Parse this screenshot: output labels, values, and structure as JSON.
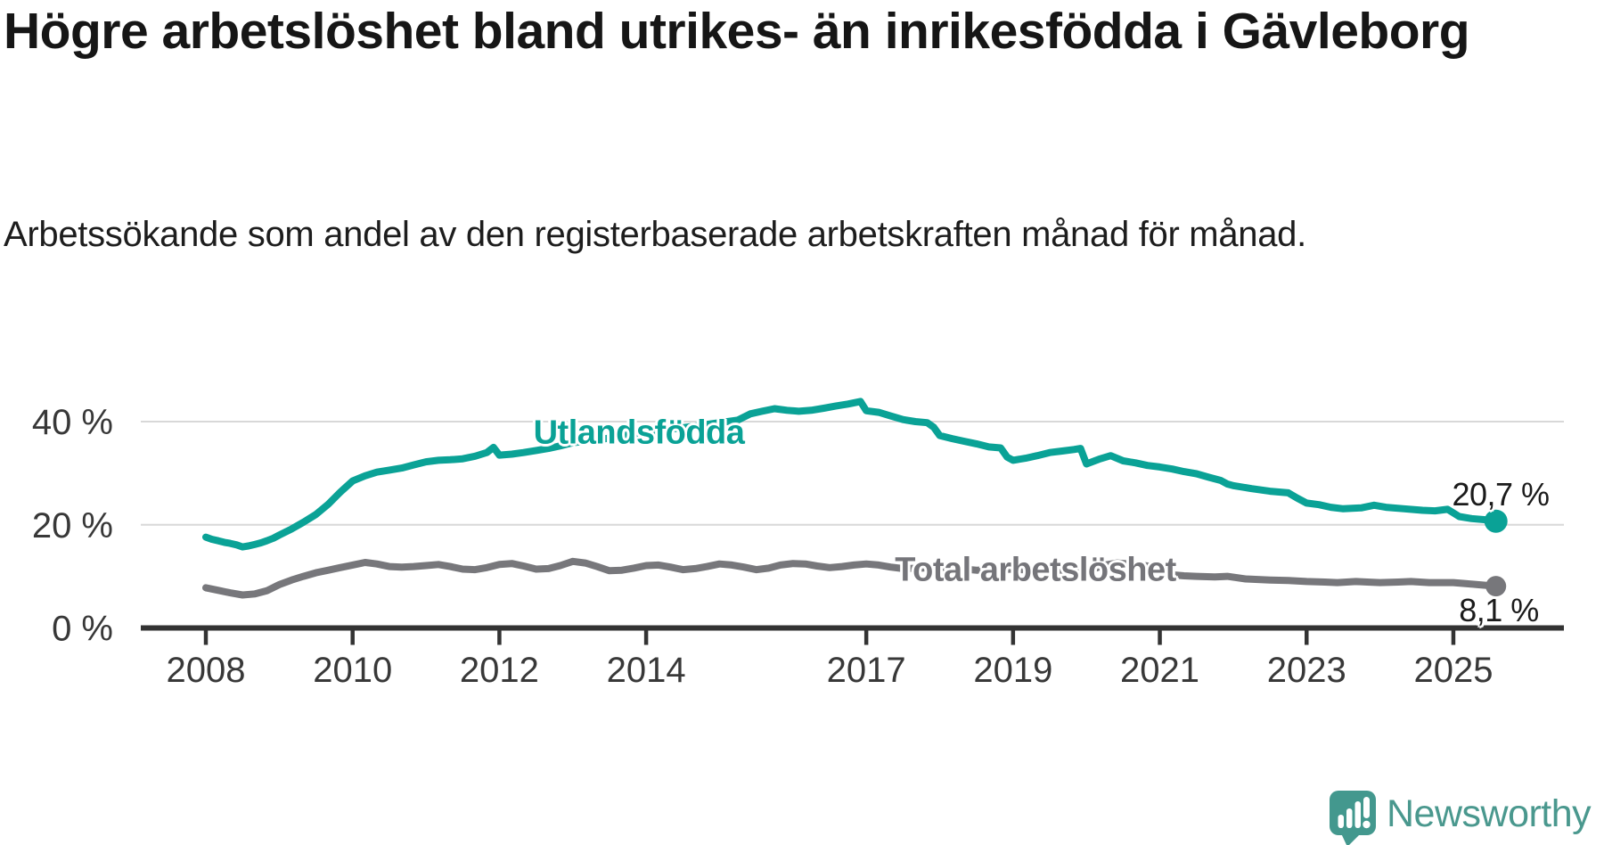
{
  "header": {
    "title": "Högre arbetslöshet bland utrikes- än inrikesfödda i Gävleborg",
    "subtitle": "Arbetssökande som andel av den registerbaserade arbetskraften månad för månad."
  },
  "footer": {
    "brand": "Newsworthy"
  },
  "colors": {
    "accent_teal": "#0aa296",
    "line_gray": "#77777b",
    "grid": "#d8d8d8",
    "axis": "#333333",
    "tick_text": "#383838",
    "logo_teal": "#43988e"
  },
  "chart_data": {
    "type": "line",
    "title": "Högre arbetslöshet bland utrikes- än inrikesfödda i Gävleborg",
    "subtitle": "Arbetssökande som andel av den registerbaserade arbetskraften månad för månad.",
    "x_axis": {
      "unit": "year",
      "tick_values": [
        2008,
        2010,
        2012,
        2014,
        2017,
        2019,
        2021,
        2023,
        2025
      ],
      "tick_labels": [
        "2008",
        "2010",
        "2012",
        "2014",
        "2017",
        "2019",
        "2021",
        "2023",
        "2025"
      ],
      "range": [
        2008.0,
        2025.58
      ]
    },
    "y_axis": {
      "unit": "percent",
      "tick_values": [
        0,
        20,
        40
      ],
      "tick_labels": [
        "0 %",
        "20 %",
        "40 %"
      ],
      "ylim": [
        0,
        46
      ],
      "grid": true
    },
    "legend_position": "inline-on-line",
    "series": [
      {
        "name": "Utlandsfödda",
        "color": "#0aa296",
        "end_label": "20,7 %",
        "end_value": 20.7,
        "points": [
          [
            2008.0,
            17.6
          ],
          [
            2008.08,
            17.2
          ],
          [
            2008.17,
            16.9
          ],
          [
            2008.25,
            16.6
          ],
          [
            2008.33,
            16.4
          ],
          [
            2008.42,
            16.1
          ],
          [
            2008.5,
            15.7
          ],
          [
            2008.58,
            15.9
          ],
          [
            2008.67,
            16.2
          ],
          [
            2008.75,
            16.5
          ],
          [
            2008.83,
            16.9
          ],
          [
            2008.92,
            17.4
          ],
          [
            2009.0,
            18.0
          ],
          [
            2009.17,
            19.2
          ],
          [
            2009.33,
            20.5
          ],
          [
            2009.5,
            22.0
          ],
          [
            2009.67,
            24.0
          ],
          [
            2009.83,
            26.3
          ],
          [
            2010.0,
            28.5
          ],
          [
            2010.17,
            29.5
          ],
          [
            2010.33,
            30.2
          ],
          [
            2010.5,
            30.6
          ],
          [
            2010.67,
            31.0
          ],
          [
            2010.83,
            31.6
          ],
          [
            2011.0,
            32.2
          ],
          [
            2011.17,
            32.5
          ],
          [
            2011.33,
            32.6
          ],
          [
            2011.5,
            32.8
          ],
          [
            2011.67,
            33.3
          ],
          [
            2011.83,
            34.0
          ],
          [
            2011.92,
            35.0
          ],
          [
            2012.0,
            33.5
          ],
          [
            2012.17,
            33.7
          ],
          [
            2012.33,
            34.0
          ],
          [
            2012.5,
            34.4
          ],
          [
            2012.67,
            34.8
          ],
          [
            2012.83,
            35.3
          ],
          [
            2013.0,
            35.9
          ],
          [
            2013.25,
            36.3
          ],
          [
            2013.5,
            36.8
          ],
          [
            2013.75,
            37.4
          ],
          [
            2014.0,
            38.0
          ],
          [
            2014.25,
            38.4
          ],
          [
            2014.5,
            38.8
          ],
          [
            2014.75,
            39.3
          ],
          [
            2015.0,
            39.8
          ],
          [
            2015.25,
            40.3
          ],
          [
            2015.42,
            41.5
          ],
          [
            2015.58,
            42.0
          ],
          [
            2015.75,
            42.5
          ],
          [
            2015.92,
            42.2
          ],
          [
            2016.08,
            42.0
          ],
          [
            2016.25,
            42.2
          ],
          [
            2016.42,
            42.6
          ],
          [
            2016.58,
            43.0
          ],
          [
            2016.75,
            43.4
          ],
          [
            2016.92,
            43.9
          ],
          [
            2017.0,
            42.1
          ],
          [
            2017.17,
            41.8
          ],
          [
            2017.33,
            41.1
          ],
          [
            2017.5,
            40.4
          ],
          [
            2017.67,
            40.0
          ],
          [
            2017.83,
            39.8
          ],
          [
            2017.92,
            38.9
          ],
          [
            2018.0,
            37.3
          ],
          [
            2018.17,
            36.7
          ],
          [
            2018.33,
            36.2
          ],
          [
            2018.5,
            35.7
          ],
          [
            2018.67,
            35.1
          ],
          [
            2018.83,
            34.9
          ],
          [
            2018.92,
            33.1
          ],
          [
            2019.0,
            32.5
          ],
          [
            2019.17,
            32.9
          ],
          [
            2019.33,
            33.4
          ],
          [
            2019.5,
            34.0
          ],
          [
            2019.67,
            34.3
          ],
          [
            2019.83,
            34.6
          ],
          [
            2019.92,
            34.8
          ],
          [
            2020.0,
            31.8
          ],
          [
            2020.17,
            32.7
          ],
          [
            2020.33,
            33.4
          ],
          [
            2020.5,
            32.4
          ],
          [
            2020.67,
            32.0
          ],
          [
            2020.83,
            31.5
          ],
          [
            2021.0,
            31.2
          ],
          [
            2021.17,
            30.8
          ],
          [
            2021.33,
            30.3
          ],
          [
            2021.5,
            29.9
          ],
          [
            2021.67,
            29.2
          ],
          [
            2021.83,
            28.6
          ],
          [
            2021.92,
            27.9
          ],
          [
            2022.0,
            27.6
          ],
          [
            2022.25,
            27.0
          ],
          [
            2022.5,
            26.5
          ],
          [
            2022.75,
            26.2
          ],
          [
            2022.87,
            25.2
          ],
          [
            2023.0,
            24.2
          ],
          [
            2023.17,
            23.9
          ],
          [
            2023.33,
            23.4
          ],
          [
            2023.5,
            23.1
          ],
          [
            2023.75,
            23.3
          ],
          [
            2023.92,
            23.8
          ],
          [
            2024.08,
            23.4
          ],
          [
            2024.33,
            23.1
          ],
          [
            2024.58,
            22.8
          ],
          [
            2024.75,
            22.7
          ],
          [
            2024.92,
            23.0
          ],
          [
            2025.0,
            22.3
          ],
          [
            2025.08,
            21.6
          ],
          [
            2025.25,
            21.2
          ],
          [
            2025.42,
            21.0
          ],
          [
            2025.58,
            20.7
          ]
        ]
      },
      {
        "name": "Total arbetslöshet",
        "color": "#77777b",
        "end_label": "8,1 %",
        "end_value": 8.1,
        "points": [
          [
            2008.0,
            7.8
          ],
          [
            2008.17,
            7.3
          ],
          [
            2008.33,
            6.8
          ],
          [
            2008.5,
            6.4
          ],
          [
            2008.67,
            6.6
          ],
          [
            2008.83,
            7.2
          ],
          [
            2009.0,
            8.4
          ],
          [
            2009.17,
            9.3
          ],
          [
            2009.33,
            10.0
          ],
          [
            2009.5,
            10.7
          ],
          [
            2009.67,
            11.2
          ],
          [
            2009.83,
            11.7
          ],
          [
            2010.0,
            12.2
          ],
          [
            2010.17,
            12.7
          ],
          [
            2010.33,
            12.4
          ],
          [
            2010.5,
            11.9
          ],
          [
            2010.67,
            11.8
          ],
          [
            2010.83,
            11.9
          ],
          [
            2011.0,
            12.1
          ],
          [
            2011.17,
            12.3
          ],
          [
            2011.33,
            11.9
          ],
          [
            2011.5,
            11.4
          ],
          [
            2011.67,
            11.3
          ],
          [
            2011.83,
            11.7
          ],
          [
            2012.0,
            12.3
          ],
          [
            2012.17,
            12.5
          ],
          [
            2012.33,
            12.0
          ],
          [
            2012.5,
            11.4
          ],
          [
            2012.67,
            11.5
          ],
          [
            2012.83,
            12.1
          ],
          [
            2013.0,
            12.9
          ],
          [
            2013.17,
            12.6
          ],
          [
            2013.33,
            11.9
          ],
          [
            2013.5,
            11.1
          ],
          [
            2013.67,
            11.2
          ],
          [
            2013.83,
            11.6
          ],
          [
            2014.0,
            12.1
          ],
          [
            2014.17,
            12.2
          ],
          [
            2014.33,
            11.8
          ],
          [
            2014.5,
            11.3
          ],
          [
            2014.67,
            11.5
          ],
          [
            2014.83,
            11.9
          ],
          [
            2015.0,
            12.4
          ],
          [
            2015.17,
            12.2
          ],
          [
            2015.33,
            11.8
          ],
          [
            2015.5,
            11.3
          ],
          [
            2015.67,
            11.6
          ],
          [
            2015.83,
            12.2
          ],
          [
            2016.0,
            12.5
          ],
          [
            2016.17,
            12.4
          ],
          [
            2016.33,
            12.0
          ],
          [
            2016.5,
            11.7
          ],
          [
            2016.67,
            11.9
          ],
          [
            2016.83,
            12.2
          ],
          [
            2017.0,
            12.4
          ],
          [
            2017.17,
            12.2
          ],
          [
            2017.33,
            11.8
          ],
          [
            2017.5,
            11.5
          ],
          [
            2017.75,
            11.6
          ],
          [
            2018.0,
            11.8
          ],
          [
            2018.25,
            11.5
          ],
          [
            2018.5,
            11.2
          ],
          [
            2018.75,
            11.3
          ],
          [
            2019.0,
            11.4
          ],
          [
            2019.25,
            11.2
          ],
          [
            2019.5,
            11.1
          ],
          [
            2019.75,
            11.3
          ],
          [
            2020.0,
            11.0
          ],
          [
            2020.25,
            12.2
          ],
          [
            2020.42,
            12.6
          ],
          [
            2020.67,
            12.3
          ],
          [
            2020.83,
            12.0
          ],
          [
            2021.0,
            11.3
          ],
          [
            2021.08,
            10.8
          ],
          [
            2021.17,
            10.3
          ],
          [
            2021.33,
            10.1
          ],
          [
            2021.5,
            10.0
          ],
          [
            2021.75,
            9.9
          ],
          [
            2021.92,
            10.0
          ],
          [
            2022.17,
            9.5
          ],
          [
            2022.5,
            9.3
          ],
          [
            2022.75,
            9.2
          ],
          [
            2023.0,
            9.0
          ],
          [
            2023.25,
            8.9
          ],
          [
            2023.42,
            8.8
          ],
          [
            2023.67,
            9.0
          ],
          [
            2023.83,
            8.9
          ],
          [
            2024.0,
            8.8
          ],
          [
            2024.25,
            8.9
          ],
          [
            2024.42,
            9.0
          ],
          [
            2024.67,
            8.8
          ],
          [
            2024.83,
            8.8
          ],
          [
            2025.0,
            8.8
          ],
          [
            2025.17,
            8.6
          ],
          [
            2025.33,
            8.4
          ],
          [
            2025.58,
            8.1
          ]
        ]
      }
    ]
  }
}
